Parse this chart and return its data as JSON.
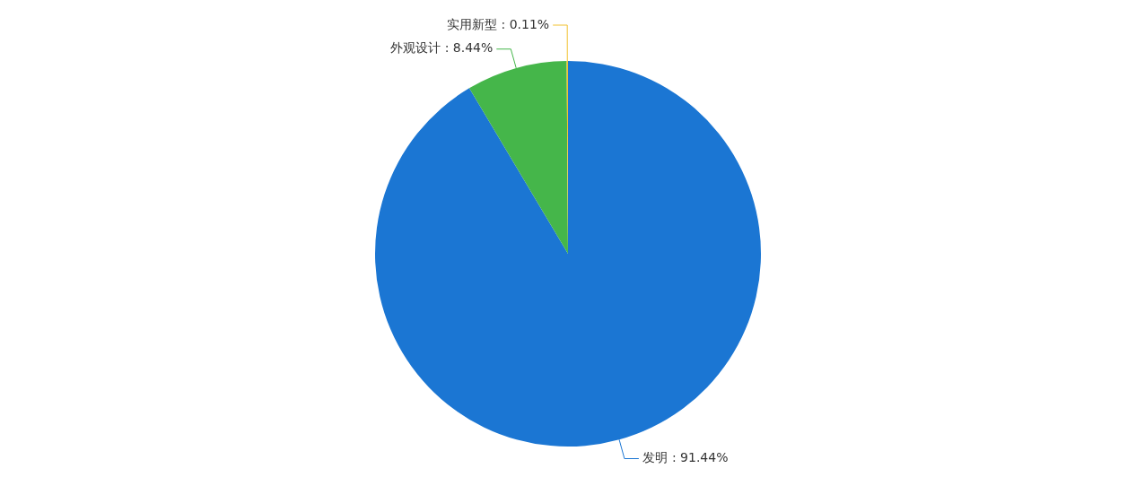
{
  "chart_data": {
    "type": "pie",
    "categories": [
      "发明",
      "外观设计",
      "实用新型"
    ],
    "values": [
      91.44,
      8.44,
      0.11
    ],
    "colors": [
      "#1b76d3",
      "#45b64a",
      "#f2c230"
    ],
    "value_labels": [
      ": 91.44%",
      ": 8.44%",
      ": 0.11%"
    ],
    "legend": false
  }
}
